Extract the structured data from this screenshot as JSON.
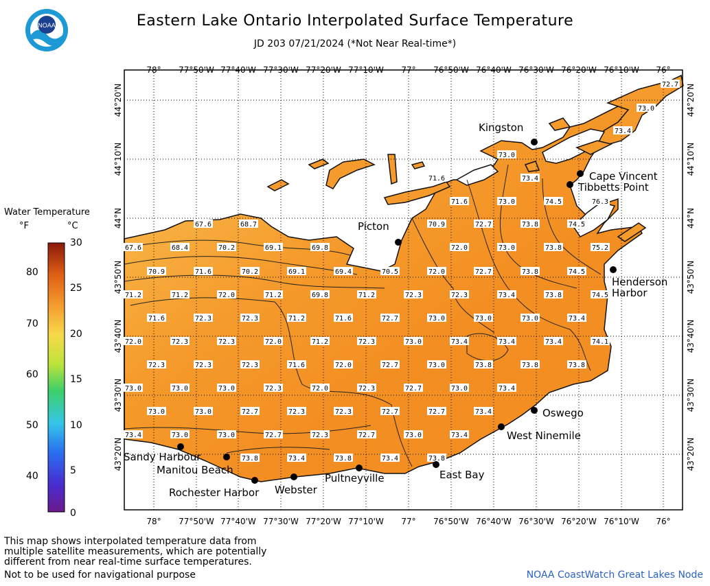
{
  "title": "Eastern Lake Ontario Interpolated Surface Temperature",
  "subtitle": "JD 203 07/21/2024 (*Not Near Real-time*)",
  "logo_text": "NOAA",
  "legend": {
    "title": "Water Temperature",
    "unit_f": "°F",
    "unit_c": "°C",
    "f_ticks": [
      "80",
      "70",
      "60",
      "50",
      "40"
    ],
    "c_ticks": [
      "30",
      "25",
      "20",
      "15",
      "10",
      "5",
      "0"
    ]
  },
  "longitude_labels": [
    "78°",
    "77°50'W",
    "77°40'W",
    "77°30'W",
    "77°20'W",
    "77°10'W",
    "77°",
    "76°50'W",
    "76°40'W",
    "76°30'W",
    "76°20'W",
    "76°10'W",
    "76°"
  ],
  "latitude_labels": [
    "44°20'N",
    "44°10'N",
    "44°N",
    "43°50'N",
    "43°40'N",
    "43°30'N",
    "43°20'N"
  ],
  "cities": [
    {
      "name": "Kingston"
    },
    {
      "name": "Cape Vincent"
    },
    {
      "name": "Tibbetts Point"
    },
    {
      "name": "Picton"
    },
    {
      "name": "Henderson"
    },
    {
      "name": "Harbor"
    },
    {
      "name": "Oswego"
    },
    {
      "name": "West Ninemile"
    },
    {
      "name": "East Bay"
    },
    {
      "name": "Pultneyville"
    },
    {
      "name": "Webster"
    },
    {
      "name": "Rochester Harbor"
    },
    {
      "name": "Manitou Beach"
    },
    {
      "name": "Sandy Harbour"
    }
  ],
  "temperature_labels": [
    "72.7",
    "73.0",
    "73.4",
    "73.0",
    "71.6",
    "73.4",
    "71.6",
    "73.0",
    "74.5",
    "76.3",
    "67.6",
    "68.7",
    "70.9",
    "72.7",
    "73.8",
    "74.5",
    "67.6",
    "68.4",
    "70.2",
    "69.1",
    "69.8",
    "72.0",
    "73.0",
    "73.8",
    "75.2",
    "70.9",
    "71.6",
    "70.2",
    "69.1",
    "69.4",
    "70.5",
    "72.0",
    "72.7",
    "73.8",
    "74.5",
    "71.2",
    "71.2",
    "72.0",
    "71.2",
    "69.8",
    "71.2",
    "72.3",
    "72.3",
    "73.4",
    "73.8",
    "74.5",
    "71.6",
    "72.3",
    "72.3",
    "71.2",
    "71.6",
    "72.7",
    "73.0",
    "73.0",
    "73.0",
    "73.4",
    "72.0",
    "72.3",
    "72.3",
    "72.0",
    "71.2",
    "72.3",
    "73.0",
    "73.4",
    "73.4",
    "73.4",
    "74.1",
    "72.3",
    "72.3",
    "72.3",
    "71.6",
    "72.0",
    "72.7",
    "73.0",
    "73.8",
    "73.8",
    "73.8",
    "73.0",
    "73.0",
    "73.0",
    "72.3",
    "72.0",
    "72.3",
    "72.7",
    "73.0",
    "73.4",
    "73.0",
    "73.0",
    "72.7",
    "72.3",
    "72.3",
    "72.7",
    "72.7",
    "73.4",
    "73.4",
    "73.0",
    "73.0",
    "72.7",
    "72.3",
    "72.7",
    "73.0",
    "73.4",
    "73.8",
    "73.4",
    "73.8",
    "73.4",
    "73.8"
  ],
  "footer": {
    "note": "This map shows interpolated temperature data from\nmultiple satellite measurements, which are potentially\ndifferent from near real-time surface temperatures.",
    "nav_warning": "Not to be used for navigational purpose",
    "credit": "NOAA CoastWatch Great Lakes Node"
  },
  "colors": {
    "water_main": "#f59a2c",
    "water_cool": "#f9c658",
    "land": "#ffffff",
    "credit": "#2a62c6"
  }
}
